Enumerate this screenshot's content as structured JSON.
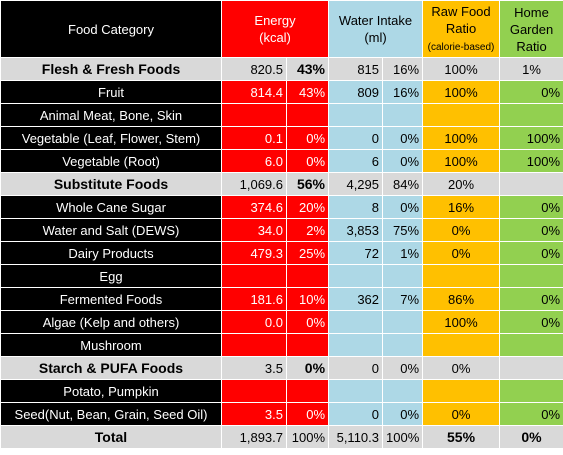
{
  "header": {
    "food_category": "Food Category",
    "energy": "Energy",
    "energy_unit": "(kcal)",
    "water": "Water Intake",
    "water_unit": "(ml)",
    "raw_food_1": "Raw Food",
    "raw_food_2": "Ratio",
    "raw_food_3": "(calorie-based)",
    "home_1": "Home",
    "home_2": "Garden",
    "home_3": "Ratio"
  },
  "rows": [
    {
      "type": "group",
      "name": "Flesh & Fresh Foods",
      "kcal": "820.5",
      "kcal_pct": "43%",
      "ml": "815",
      "ml_pct": "16%",
      "raw": "100%",
      "home": "1%"
    },
    {
      "type": "item",
      "name": "Fruit",
      "kcal": "814.4",
      "kcal_pct": "43%",
      "ml": "809",
      "ml_pct": "16%",
      "raw": "100%",
      "home": "0%"
    },
    {
      "type": "item",
      "name": "Animal Meat, Bone, Skin",
      "kcal": "",
      "kcal_pct": "",
      "ml": "",
      "ml_pct": "",
      "raw": "",
      "home": ""
    },
    {
      "type": "item",
      "name": "Vegetable (Leaf, Flower, Stem)",
      "kcal": "0.1",
      "kcal_pct": "0%",
      "ml": "0",
      "ml_pct": "0%",
      "raw": "100%",
      "home": "100%"
    },
    {
      "type": "item",
      "name": "Vegetable (Root)",
      "kcal": "6.0",
      "kcal_pct": "0%",
      "ml": "6",
      "ml_pct": "0%",
      "raw": "100%",
      "home": "100%"
    },
    {
      "type": "group",
      "name": "Substitute Foods",
      "kcal": "1,069.6",
      "kcal_pct": "56%",
      "ml": "4,295",
      "ml_pct": "84%",
      "raw": "20%",
      "home": ""
    },
    {
      "type": "item",
      "name": "Whole Cane Sugar",
      "kcal": "374.6",
      "kcal_pct": "20%",
      "ml": "8",
      "ml_pct": "0%",
      "raw": "16%",
      "home": "0%"
    },
    {
      "type": "item",
      "name": "Water and Salt (DEWS)",
      "kcal": "34.0",
      "kcal_pct": "2%",
      "ml": "3,853",
      "ml_pct": "75%",
      "raw": "0%",
      "home": "0%"
    },
    {
      "type": "item",
      "name": "Dairy Products",
      "kcal": "479.3",
      "kcal_pct": "25%",
      "ml": "72",
      "ml_pct": "1%",
      "raw": "0%",
      "home": "0%"
    },
    {
      "type": "item",
      "name": "Egg",
      "kcal": "",
      "kcal_pct": "",
      "ml": "",
      "ml_pct": "",
      "raw": "",
      "home": ""
    },
    {
      "type": "item",
      "name": "Fermented Foods",
      "kcal": "181.6",
      "kcal_pct": "10%",
      "ml": "362",
      "ml_pct": "7%",
      "raw": "86%",
      "home": "0%"
    },
    {
      "type": "item",
      "name": "Algae (Kelp and others)",
      "kcal": "0.0",
      "kcal_pct": "0%",
      "ml": "",
      "ml_pct": "",
      "raw": "100%",
      "home": "0%"
    },
    {
      "type": "item",
      "name": "Mushroom",
      "kcal": "",
      "kcal_pct": "",
      "ml": "",
      "ml_pct": "",
      "raw": "",
      "home": ""
    },
    {
      "type": "group",
      "name": "Starch & PUFA Foods",
      "kcal": "3.5",
      "kcal_pct": "0%",
      "ml": "0",
      "ml_pct": "0%",
      "raw": "0%",
      "home": ""
    },
    {
      "type": "item",
      "name": "Potato, Pumpkin",
      "kcal": "",
      "kcal_pct": "",
      "ml": "",
      "ml_pct": "",
      "raw": "",
      "home": ""
    },
    {
      "type": "item",
      "name": "Seed(Nut, Bean, Grain, Seed Oil)",
      "kcal": "3.5",
      "kcal_pct": "0%",
      "ml": "0",
      "ml_pct": "0%",
      "raw": "0%",
      "home": "0%"
    },
    {
      "type": "total",
      "name": "Total",
      "kcal": "1,893.7",
      "kcal_pct": "100%",
      "ml": "5,110.3",
      "ml_pct": "100%",
      "raw": "55%",
      "home": "0%"
    }
  ]
}
